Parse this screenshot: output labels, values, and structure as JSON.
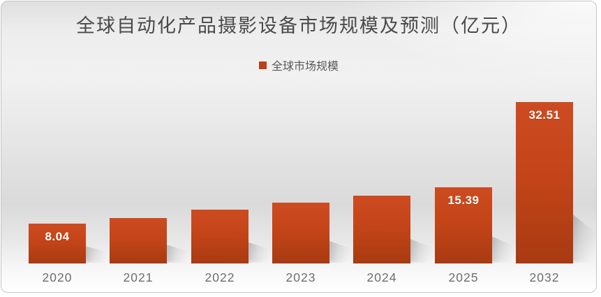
{
  "page": {
    "background": "#ffffff",
    "card_border": "#c6c6c6"
  },
  "chart_data": {
    "type": "bar",
    "title": "全球自动化产品摄影设备市场规模及预测（亿元）",
    "legend": [
      {
        "label": "全球市场规模",
        "color": "#bc4016"
      }
    ],
    "legend_position": "top-center",
    "categories": [
      "2020",
      "2021",
      "2022",
      "2023",
      "2024",
      "2025",
      "2032"
    ],
    "series": [
      {
        "name": "全球市场规模",
        "values": [
          8.04,
          9.2,
          10.9,
          12.3,
          13.7,
          15.39,
          32.51
        ]
      }
    ],
    "data_labels": [
      "8.04",
      "",
      "",
      "",
      "",
      "15.39",
      "32.51"
    ],
    "ylim": [
      0,
      35
    ],
    "grid": false,
    "y_axis_visible": false,
    "bar_color_top": "#cd4b20",
    "bar_color_bottom": "#a83a11",
    "data_label_color": "#ffffff",
    "axis_label_color": "#6e6e6e",
    "title_color": "#4a4a4a",
    "legend_text_color": "#595959"
  },
  "layout_note": "values without visible data labels are estimated from bar heights"
}
